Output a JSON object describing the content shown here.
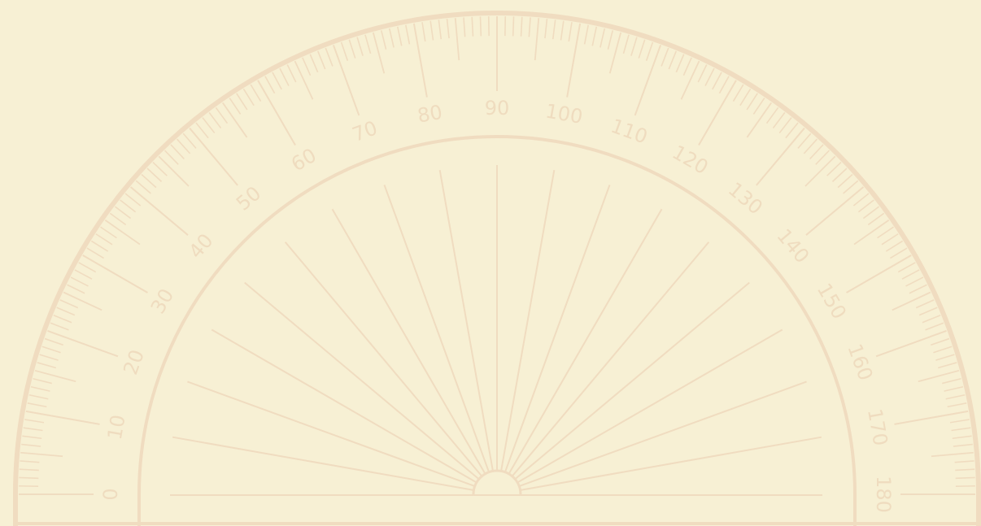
{
  "protractor": {
    "scale_min": 0,
    "scale_max": 180,
    "minor_tick_step": 1,
    "mid_tick_step": 5,
    "major_tick_step": 10,
    "ray_step": 10,
    "labels": [
      "0",
      "10",
      "20",
      "30",
      "40",
      "50",
      "60",
      "70",
      "80",
      "90",
      "100",
      "110",
      "120",
      "130",
      "140",
      "150",
      "160",
      "170",
      "180"
    ]
  },
  "colors": {
    "background": "#f7f0d4",
    "ink": "#f0dcc0",
    "label": "#efdcbf"
  }
}
